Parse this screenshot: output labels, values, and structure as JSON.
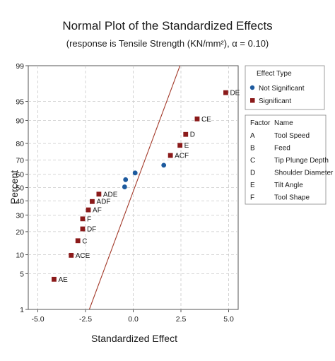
{
  "chart_data": {
    "type": "scatter",
    "title": "Normal Plot of the Standardized Effects",
    "subtitle": "(response is Tensile Strength (KN/mm²), α = 0.10)",
    "xlabel": "Standardized Effect",
    "ylabel": "Percent",
    "xlim": [
      -5.5,
      5.5
    ],
    "ylim": [
      1,
      99
    ],
    "x_scale": "linear",
    "y_scale": "normal-probability",
    "xticks": [
      -5.0,
      -2.5,
      0.0,
      2.5,
      5.0
    ],
    "xtick_labels": [
      "-5.0",
      "-2.5",
      "0.0",
      "2.5",
      "5.0"
    ],
    "yticks": [
      1,
      5,
      10,
      20,
      30,
      40,
      50,
      60,
      70,
      80,
      90,
      95,
      99
    ],
    "ytick_labels": [
      "1",
      "5",
      "10",
      "20",
      "30",
      "40",
      "50",
      "60",
      "70",
      "80",
      "90",
      "95",
      "99"
    ],
    "grid": true,
    "reference_line": {
      "points": [
        [
          -2.3,
          1
        ],
        [
          2.45,
          99
        ]
      ],
      "color": "#a33a2a"
    },
    "series": [
      {
        "name": "Not Significant",
        "marker": "circle",
        "color": "#1d5a9e",
        "points": [
          {
            "x": -0.45,
            "y": 50.5
          },
          {
            "x": -0.4,
            "y": 56.0
          },
          {
            "x": 0.1,
            "y": 61.0
          },
          {
            "x": 1.6,
            "y": 66.5
          }
        ]
      },
      {
        "name": "Significant",
        "marker": "square",
        "color": "#8b1a1a",
        "points": [
          {
            "x": -4.15,
            "y": 4.0,
            "label": "AE"
          },
          {
            "x": -3.25,
            "y": 9.8,
            "label": "ACE"
          },
          {
            "x": -2.9,
            "y": 15.5,
            "label": "C"
          },
          {
            "x": -2.65,
            "y": 21.5,
            "label": "DF"
          },
          {
            "x": -2.65,
            "y": 27.5,
            "label": "F"
          },
          {
            "x": -2.35,
            "y": 33.5,
            "label": "AF"
          },
          {
            "x": -2.15,
            "y": 39.5,
            "label": "ADF"
          },
          {
            "x": -1.8,
            "y": 45.0,
            "label": "ADE"
          },
          {
            "x": 1.95,
            "y": 73.0,
            "label": "ACF"
          },
          {
            "x": 2.45,
            "y": 79.0,
            "label": "E"
          },
          {
            "x": 2.75,
            "y": 84.5,
            "label": "D"
          },
          {
            "x": 3.35,
            "y": 90.5,
            "label": "CE"
          },
          {
            "x": 4.85,
            "y": 96.5,
            "label": "DE"
          }
        ]
      }
    ],
    "legend": {
      "placement": "right",
      "effect_type_title": "Effect Type",
      "effect_types": [
        "Not Significant",
        "Significant"
      ],
      "factor_header": "Factor",
      "name_header": "Name",
      "factors": [
        {
          "factor": "A",
          "name": "Tool Speed"
        },
        {
          "factor": "B",
          "name": "Feed"
        },
        {
          "factor": "C",
          "name": "Tip Plunge Depth"
        },
        {
          "factor": "D",
          "name": "Shoulder Diameter"
        },
        {
          "factor": "E",
          "name": "Tilt Angle"
        },
        {
          "factor": "F",
          "name": "Tool Shape"
        }
      ]
    }
  }
}
